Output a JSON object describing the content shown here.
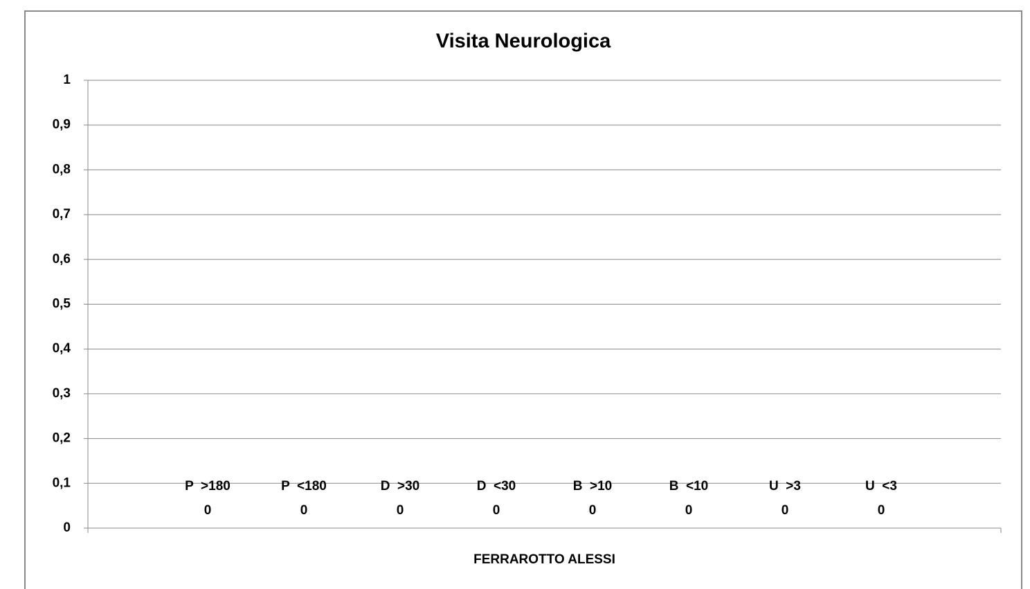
{
  "chart_data": {
    "type": "bar",
    "title": "Visita Neurologica",
    "categories": [
      "FERRAROTTO ALESSI"
    ],
    "series": [
      {
        "name": "P  >180",
        "color": "#4f81bd",
        "values": [
          0
        ]
      },
      {
        "name": "P  <180",
        "color": "#c0504d",
        "values": [
          0
        ]
      },
      {
        "name": "D  >30",
        "color": "#9bbb59",
        "values": [
          0
        ]
      },
      {
        "name": "D  <30",
        "color": "#8064a2",
        "values": [
          0
        ]
      },
      {
        "name": "B  >10",
        "color": "#4bacc6",
        "values": [
          0
        ]
      },
      {
        "name": "B  <10",
        "color": "#f79646",
        "values": [
          0
        ]
      },
      {
        "name": "U  >3",
        "color": "#2c4d75",
        "values": [
          0
        ]
      },
      {
        "name": "U  <3",
        "color": "#772c2a",
        "values": [
          0
        ]
      }
    ],
    "ylim": [
      0,
      1
    ],
    "yticks": [
      0,
      {
        "value": 0.1,
        "label": "0,1"
      },
      {
        "value": 0.2,
        "label": "0,2"
      },
      {
        "value": 0.3,
        "label": "0,3"
      },
      {
        "value": 0.4,
        "label": "0,4"
      },
      {
        "value": 0.5,
        "label": "0,5"
      },
      {
        "value": 0.6,
        "label": "0,6"
      },
      {
        "value": 0.7,
        "label": "0,7"
      },
      {
        "value": 0.8,
        "label": "0,8"
      },
      {
        "value": 0.9,
        "label": "0,9"
      },
      1
    ],
    "grid": true
  }
}
